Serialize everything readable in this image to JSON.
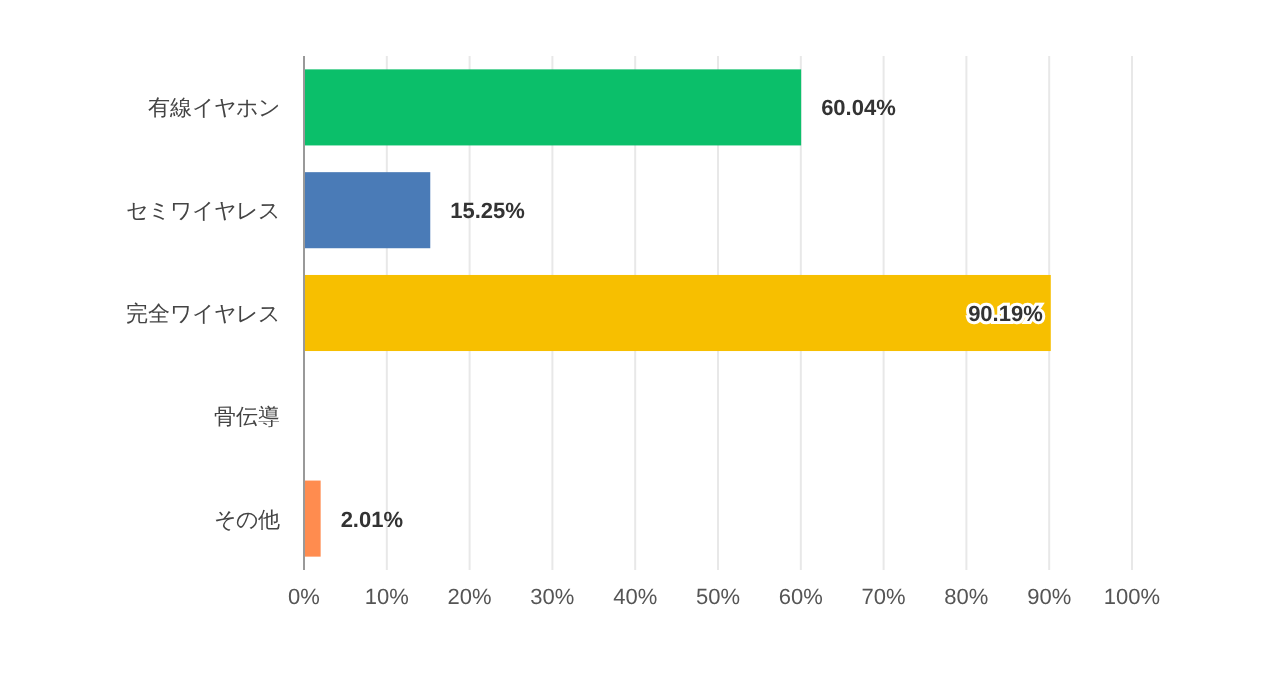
{
  "chart_data": {
    "type": "bar",
    "orientation": "horizontal",
    "categories": [
      "有線イヤホン",
      "セミワイヤレス",
      "完全ワイヤレス",
      "骨伝導",
      "その他"
    ],
    "values": [
      60.04,
      15.25,
      90.19,
      0,
      2.01
    ],
    "colors": [
      "#0bbf6a",
      "#4a7bb7",
      "#f7bf00",
      "#f7bf00",
      "#ff8c4f"
    ],
    "value_labels": [
      "60.04%",
      "15.25%",
      "90.19%",
      null,
      "2.01%"
    ],
    "xlim": [
      0,
      100
    ],
    "xticks": [
      {
        "value": 0,
        "label": "0%"
      },
      {
        "value": 10,
        "label": "10%"
      },
      {
        "value": 20,
        "label": "20%"
      },
      {
        "value": 30,
        "label": "30%"
      },
      {
        "value": 40,
        "label": "40%"
      },
      {
        "value": 50,
        "label": "50%"
      },
      {
        "value": 60,
        "label": "60%"
      },
      {
        "value": 70,
        "label": "70%"
      },
      {
        "value": 80,
        "label": "80%"
      },
      {
        "value": 90,
        "label": "90%"
      },
      {
        "value": 100,
        "label": "100%"
      }
    ],
    "grid": "x"
  }
}
